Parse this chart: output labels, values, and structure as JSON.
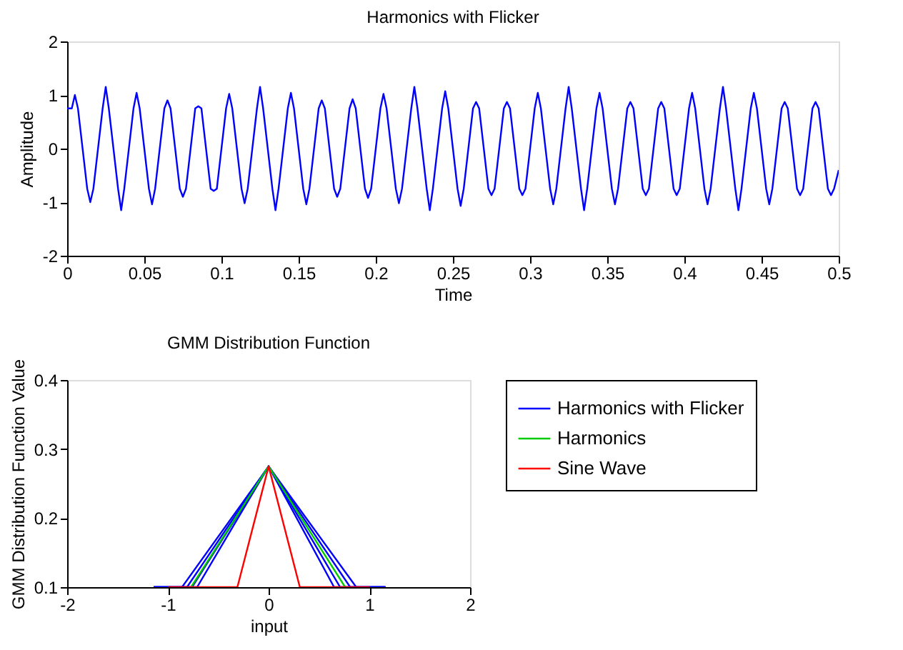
{
  "chart_data": [
    {
      "type": "line",
      "title": "Harmonics with Flicker",
      "xlabel": "Time",
      "ylabel": "Amplitude",
      "xlim": [
        0,
        0.5
      ],
      "ylim": [
        -2,
        2
      ],
      "xticks": [
        0,
        0.05,
        0.1,
        0.15,
        0.2,
        0.25,
        0.3,
        0.35,
        0.4,
        0.45,
        0.5
      ],
      "yticks": [
        -2,
        -1,
        0,
        1,
        2
      ],
      "marker": "none",
      "line_style": "solid",
      "series": [
        {
          "color": "#0000ff",
          "x": [
            0,
            0.003,
            0.005,
            0.007,
            0.013,
            0.015,
            0.017,
            0.023,
            0.025,
            0.027,
            0.033,
            0.035,
            0.037,
            0.043,
            0.045,
            0.047,
            0.053,
            0.055,
            0.057,
            0.063,
            0.065,
            0.067,
            0.073,
            0.075,
            0.077,
            0.083,
            0.085,
            0.087,
            0.093,
            0.095,
            0.097,
            0.103,
            0.105,
            0.107,
            0.113,
            0.115,
            0.117,
            0.123,
            0.125,
            0.127,
            0.133,
            0.135,
            0.137,
            0.143,
            0.145,
            0.147,
            0.153,
            0.155,
            0.157,
            0.163,
            0.165,
            0.167,
            0.173,
            0.175,
            0.177,
            0.183,
            0.185,
            0.187,
            0.193,
            0.195,
            0.197,
            0.203,
            0.205,
            0.207,
            0.213,
            0.215,
            0.217,
            0.223,
            0.225,
            0.227,
            0.233,
            0.235,
            0.237,
            0.243,
            0.245,
            0.247,
            0.253,
            0.255,
            0.257,
            0.263,
            0.265,
            0.267,
            0.273,
            0.275,
            0.277,
            0.283,
            0.285,
            0.287,
            0.293,
            0.295,
            0.297,
            0.303,
            0.305,
            0.307,
            0.313,
            0.315,
            0.317,
            0.323,
            0.325,
            0.327,
            0.333,
            0.335,
            0.337,
            0.343,
            0.345,
            0.347,
            0.353,
            0.355,
            0.357,
            0.363,
            0.365,
            0.367,
            0.373,
            0.375,
            0.377,
            0.383,
            0.385,
            0.387,
            0.393,
            0.395,
            0.397,
            0.403,
            0.405,
            0.407,
            0.413,
            0.415,
            0.417,
            0.423,
            0.425,
            0.427,
            0.433,
            0.435,
            0.437,
            0.443,
            0.445,
            0.447,
            0.453,
            0.455,
            0.457,
            0.463,
            0.465,
            0.467,
            0.473,
            0.475,
            0.477,
            0.483,
            0.485,
            0.487,
            0.493,
            0.495,
            0.497,
            0.5
          ],
          "values": [
            0.75,
            0.75,
            1.0,
            0.75,
            -0.75,
            -1.0,
            -0.75,
            0.75,
            1.15,
            0.75,
            -0.75,
            -1.15,
            -0.75,
            0.75,
            1.04,
            0.75,
            -0.75,
            -1.04,
            -0.75,
            0.75,
            0.9,
            0.75,
            -0.75,
            -0.9,
            -0.75,
            0.75,
            0.79,
            0.75,
            -0.75,
            -0.79,
            -0.75,
            0.75,
            1.02,
            0.75,
            -0.75,
            -1.02,
            -0.75,
            0.75,
            1.15,
            0.75,
            -0.75,
            -1.15,
            -0.75,
            0.75,
            1.04,
            0.75,
            -0.75,
            -1.04,
            -0.75,
            0.75,
            0.9,
            0.75,
            -0.75,
            -0.9,
            -0.75,
            0.75,
            0.92,
            0.75,
            -0.75,
            -0.92,
            -0.75,
            0.75,
            1.02,
            0.75,
            -0.75,
            -1.02,
            -0.75,
            0.75,
            1.15,
            0.75,
            -0.75,
            -1.15,
            -0.75,
            0.75,
            1.07,
            0.75,
            -0.75,
            -1.07,
            -0.75,
            0.75,
            0.87,
            0.75,
            -0.75,
            -0.87,
            -0.75,
            0.75,
            0.87,
            0.75,
            -0.75,
            -0.87,
            -0.75,
            0.75,
            1.04,
            0.75,
            -0.75,
            -1.04,
            -0.75,
            0.75,
            1.15,
            0.75,
            -0.75,
            -1.15,
            -0.75,
            0.75,
            1.04,
            0.75,
            -0.75,
            -1.04,
            -0.75,
            0.75,
            0.87,
            0.75,
            -0.75,
            -0.87,
            -0.75,
            0.75,
            0.87,
            0.75,
            -0.75,
            -0.87,
            -0.75,
            0.75,
            1.04,
            0.75,
            -0.75,
            -1.04,
            -0.75,
            0.75,
            1.15,
            0.75,
            -0.75,
            -1.15,
            -0.75,
            0.75,
            1.04,
            0.75,
            -0.75,
            -1.04,
            -0.75,
            0.75,
            0.87,
            0.75,
            -0.75,
            -0.87,
            -0.75,
            0.75,
            0.87,
            0.75,
            -0.75,
            -0.87,
            -0.75,
            -0.4
          ]
        }
      ]
    },
    {
      "type": "line",
      "title": "GMM Distribution Function",
      "xlabel": "input",
      "ylabel": "GMM Distribution Function Value",
      "xlim": [
        -2,
        2
      ],
      "ylim": [
        0.1,
        0.4
      ],
      "xticks": [
        -2,
        -1,
        0,
        1,
        2
      ],
      "yticks": [
        0.1,
        0.2,
        0.3,
        0.4
      ],
      "legend": "right",
      "marker": "none",
      "line_style": "solid",
      "series": [
        {
          "name": "Harmonics with Flicker",
          "color": "#0000ff",
          "x": [
            -1.14,
            -0.86,
            0,
            0.87,
            1.16
          ],
          "values": [
            0.1,
            0.1,
            0.275,
            0.1,
            0.1
          ]
        },
        {
          "color": "#0000ff",
          "x": [
            -1.14,
            -0.81,
            0,
            0.81,
            1.16
          ],
          "values": [
            0.1,
            0.1,
            0.275,
            0.1,
            0.1
          ]
        },
        {
          "color": "#0000ff",
          "x": [
            -1.14,
            -0.76,
            0,
            0.71,
            1.16
          ],
          "values": [
            0.1,
            0.1,
            0.275,
            0.1,
            0.1
          ]
        },
        {
          "color": "#0000ff",
          "x": [
            -1.14,
            -0.71,
            0,
            0.65,
            1.16
          ],
          "values": [
            0.1,
            0.1,
            0.275,
            0.1,
            0.1
          ]
        },
        {
          "name": "Harmonics",
          "color": "#00cc00",
          "x": [
            -0.77,
            0,
            0.76
          ],
          "values": [
            0.1,
            0.275,
            0.1
          ]
        },
        {
          "name": "Sine Wave",
          "color": "#ff0000",
          "x": [
            -1.0,
            -0.31,
            0,
            0.31,
            1.0
          ],
          "values": [
            0.1,
            0.1,
            0.275,
            0.1,
            0.1
          ]
        }
      ]
    }
  ]
}
